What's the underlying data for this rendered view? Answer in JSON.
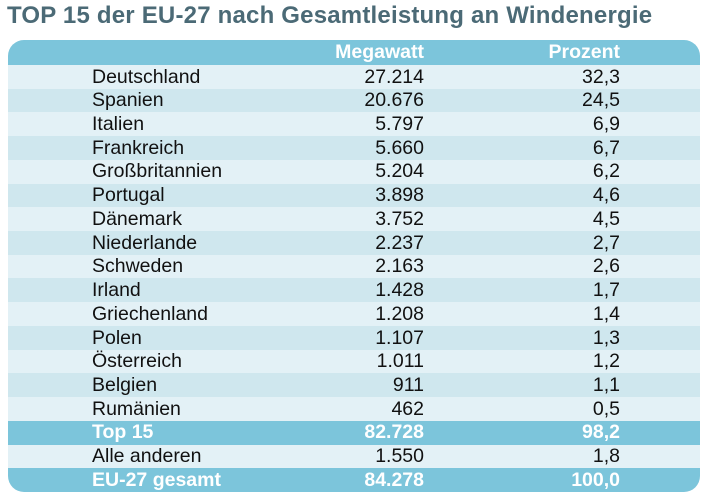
{
  "chart_data": {
    "type": "table",
    "title": "TOP 15 der EU-27 nach Gesamtleistung an Windenergie",
    "columns": [
      "",
      "Megawatt",
      "Prozent"
    ],
    "legend_position": "none",
    "grid": false,
    "rows": [
      {
        "label": "Deutschland",
        "megawatt": "27.214",
        "prozent": "32,3",
        "megawatt_value": 27214,
        "prozent_value": 32.3,
        "emphasis": false
      },
      {
        "label": "Spanien",
        "megawatt": "20.676",
        "prozent": "24,5",
        "megawatt_value": 20676,
        "prozent_value": 24.5,
        "emphasis": false
      },
      {
        "label": "Italien",
        "megawatt": "5.797",
        "prozent": "6,9",
        "megawatt_value": 5797,
        "prozent_value": 6.9,
        "emphasis": false
      },
      {
        "label": "Frankreich",
        "megawatt": "5.660",
        "prozent": "6,7",
        "megawatt_value": 5660,
        "prozent_value": 6.7,
        "emphasis": false
      },
      {
        "label": "Großbritannien",
        "megawatt": "5.204",
        "prozent": "6,2",
        "megawatt_value": 5204,
        "prozent_value": 6.2,
        "emphasis": false
      },
      {
        "label": "Portugal",
        "megawatt": "3.898",
        "prozent": "4,6",
        "megawatt_value": 3898,
        "prozent_value": 4.6,
        "emphasis": false
      },
      {
        "label": "Dänemark",
        "megawatt": "3.752",
        "prozent": "4,5",
        "megawatt_value": 3752,
        "prozent_value": 4.5,
        "emphasis": false
      },
      {
        "label": "Niederlande",
        "megawatt": "2.237",
        "prozent": "2,7",
        "megawatt_value": 2237,
        "prozent_value": 2.7,
        "emphasis": false
      },
      {
        "label": "Schweden",
        "megawatt": "2.163",
        "prozent": "2,6",
        "megawatt_value": 2163,
        "prozent_value": 2.6,
        "emphasis": false
      },
      {
        "label": "Irland",
        "megawatt": "1.428",
        "prozent": "1,7",
        "megawatt_value": 1428,
        "prozent_value": 1.7,
        "emphasis": false
      },
      {
        "label": "Griechenland",
        "megawatt": "1.208",
        "prozent": "1,4",
        "megawatt_value": 1208,
        "prozent_value": 1.4,
        "emphasis": false
      },
      {
        "label": "Polen",
        "megawatt": "1.107",
        "prozent": "1,3",
        "megawatt_value": 1107,
        "prozent_value": 1.3,
        "emphasis": false
      },
      {
        "label": "Österreich",
        "megawatt": "1.011",
        "prozent": "1,2",
        "megawatt_value": 1011,
        "prozent_value": 1.2,
        "emphasis": false
      },
      {
        "label": "Belgien",
        "megawatt": "911",
        "prozent": "1,1",
        "megawatt_value": 911,
        "prozent_value": 1.1,
        "emphasis": false
      },
      {
        "label": "Rumänien",
        "megawatt": "462",
        "prozent": "0,5",
        "megawatt_value": 462,
        "prozent_value": 0.5,
        "emphasis": false
      },
      {
        "label": "Top 15",
        "megawatt": "82.728",
        "prozent": "98,2",
        "megawatt_value": 82728,
        "prozent_value": 98.2,
        "emphasis": true
      },
      {
        "label": "Alle anderen",
        "megawatt": "1.550",
        "prozent": "1,8",
        "megawatt_value": 1550,
        "prozent_value": 1.8,
        "emphasis": false
      },
      {
        "label": "EU-27 gesamt",
        "megawatt": "84.278",
        "prozent": "100,0",
        "megawatt_value": 84278,
        "prozent_value": 100.0,
        "emphasis": true
      }
    ]
  },
  "colors": {
    "header_blue": "#7cc5db",
    "row_pale": "#e3f1f6",
    "row_mid": "#cfe7ee",
    "title_text": "#4b6a76",
    "body_text": "#111111",
    "header_text": "#ffffff"
  }
}
